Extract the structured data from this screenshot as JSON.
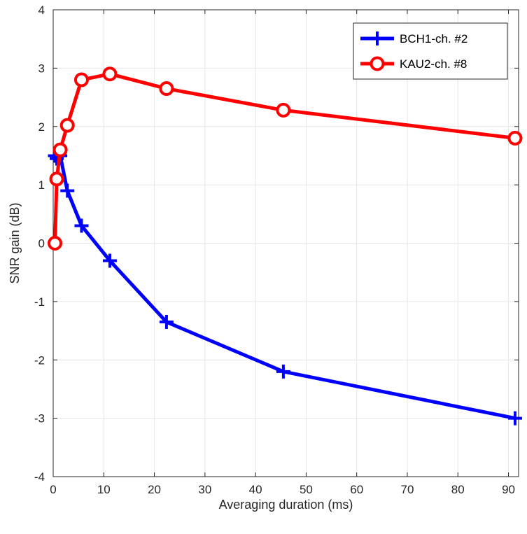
{
  "chart_data": {
    "type": "line",
    "title": "",
    "xlabel": "Averaging duration  (ms)",
    "ylabel": "SNR gain  (dB)",
    "xlim": [
      0,
      92
    ],
    "ylim": [
      -4,
      4
    ],
    "xticks": [
      0,
      10,
      20,
      30,
      40,
      50,
      60,
      70,
      80,
      90
    ],
    "yticks": [
      -4,
      -3,
      -2,
      -1,
      0,
      1,
      2,
      3,
      4
    ],
    "grid": true,
    "legend_position": "top-right",
    "series": [
      {
        "name": "BCH1-ch. #2",
        "color": "#0000ff",
        "marker": "plus",
        "x": [
          0.35,
          0.7,
          1.4,
          2.8,
          5.6,
          11.2,
          22.4,
          45.5,
          91.3
        ],
        "y": [
          1.5,
          1.45,
          1.5,
          0.9,
          0.3,
          -0.3,
          -1.35,
          -2.2,
          -3.0
        ]
      },
      {
        "name": "KAU2-ch. #8",
        "color": "#ff0000",
        "marker": "circle",
        "x": [
          0.35,
          0.7,
          1.4,
          2.8,
          5.6,
          11.2,
          22.4,
          45.5,
          91.3
        ],
        "y": [
          0.0,
          1.1,
          1.6,
          2.02,
          2.8,
          2.9,
          2.65,
          2.28,
          1.8
        ]
      }
    ]
  }
}
